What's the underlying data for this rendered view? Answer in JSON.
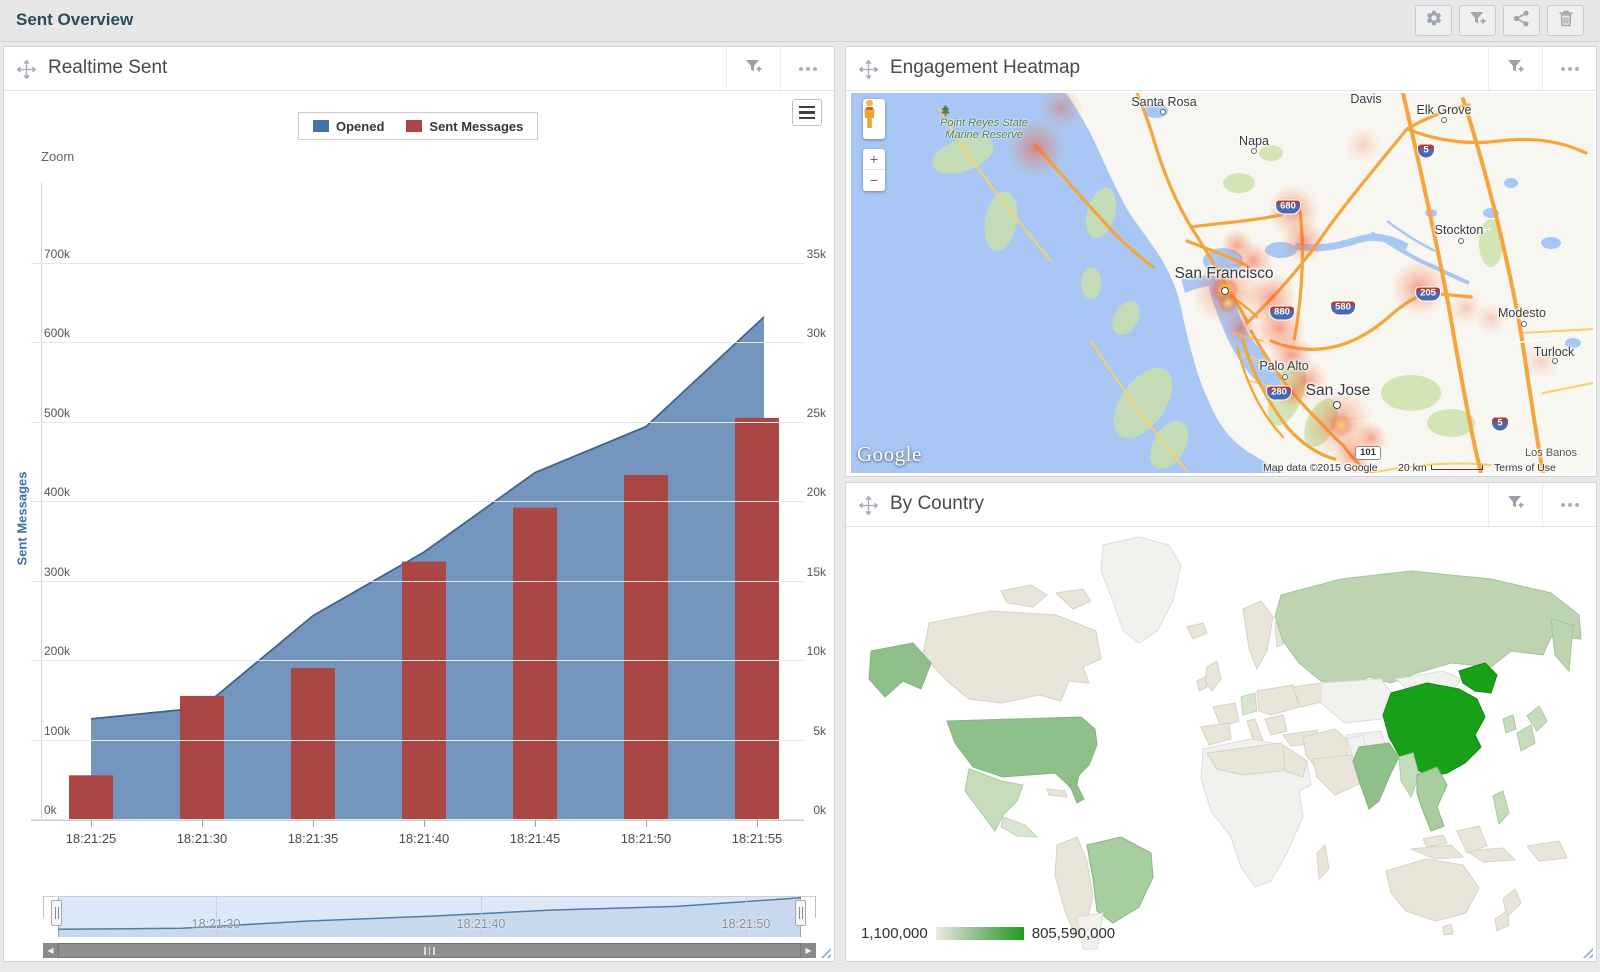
{
  "app": {
    "title": "Sent Overview"
  },
  "toolbar": {
    "buttons": [
      {
        "name": "settings",
        "icon": "gear-icon"
      },
      {
        "name": "add-filter",
        "icon": "filter-plus-icon"
      },
      {
        "name": "share",
        "icon": "share-icon"
      },
      {
        "name": "delete",
        "icon": "trash-icon"
      }
    ]
  },
  "colors": {
    "opened_blue": "#4572A7",
    "sent_red": "#AA4643",
    "title_navy": "#2C4A5E",
    "china_green": "#18A018",
    "high_green": "#8FC08A",
    "mid_green": "#A8CD9E",
    "russia_green": "#BCD5B0",
    "light_green": "#C6DDBC",
    "pale_green": "#D9E6CF",
    "no_data_beige": "#E9E5D8",
    "no_data_gray": "#F1F1EE",
    "heat_water": "#A9C7F5",
    "legend_gradient_start": "#EDEADF",
    "legend_gradient_end": "#1E9C1E"
  },
  "panels": {
    "realtime_sent": {
      "title": "Realtime Sent",
      "zoom_label": "Zoom",
      "legend": [
        {
          "label": "Opened",
          "color": "#4572A7"
        },
        {
          "label": "Sent Messages",
          "color": "#AA4643"
        }
      ],
      "y_axis_left": {
        "title": "Sent Messages",
        "labels": [
          "700k",
          "600k",
          "500k",
          "400k",
          "300k",
          "200k",
          "100k",
          "0k"
        ]
      },
      "y_axis_right": {
        "labels": [
          "35k",
          "30k",
          "25k",
          "20k",
          "15k",
          "10k",
          "5k",
          "0k"
        ]
      },
      "x_axis": {
        "labels": [
          "18:21:25",
          "18:21:30",
          "18:21:35",
          "18:21:40",
          "18:21:45",
          "18:21:50",
          "18:21:55"
        ]
      },
      "navigator": {
        "labels": [
          "18:21:30",
          "18:21:40",
          "18:21:50"
        ]
      },
      "chart_data": {
        "type": "combo",
        "x": [
          "18:21:25",
          "18:21:30",
          "18:21:35",
          "18:21:40",
          "18:21:45",
          "18:21:50",
          "18:21:55"
        ],
        "series": [
          {
            "name": "Opened",
            "type": "area",
            "y_axis": "right",
            "color": "#4572A7",
            "values": [
              6300,
              7000,
              12800,
              16800,
              21800,
              24700,
              31600
            ]
          },
          {
            "name": "Sent Messages",
            "type": "bar",
            "y_axis": "left",
            "color": "#AA4643",
            "values": [
              55000,
              155000,
              190000,
              324000,
              392000,
              433000,
              505000
            ]
          }
        ],
        "ylim_left": [
          0,
          700000
        ],
        "ylim_right": [
          0,
          35000
        ],
        "ylabel_left": "Sent Messages"
      }
    },
    "engagement_heatmap": {
      "title": "Engagement Heatmap",
      "map": {
        "labels": {
          "santa_rosa": "Santa Rosa",
          "napa": "Napa",
          "davis": "Davis",
          "elk_grove": "Elk Grove",
          "stockton": "Stockton",
          "modesto": "Modesto",
          "turlock": "Turlock",
          "san_francisco": "San Francisco",
          "palo_alto": "Palo Alto",
          "san_jose": "San Jose",
          "los_banos": "Los Banos",
          "point_reyes_line1": "Point Reyes State",
          "point_reyes_line2": "Marine Reserve"
        },
        "shields": {
          "i680": "680",
          "i880": "880",
          "i580": "580",
          "i205": "205",
          "i280": "280",
          "i5": "5",
          "us101": "101"
        },
        "controls": {
          "zoom_in": "+",
          "zoom_out": "−"
        },
        "logo": "Google",
        "attribution": "Map data ©2015 Google",
        "scale_label": "20 km",
        "terms": "Terms of Use"
      }
    },
    "by_country": {
      "title": "By Country",
      "legend": {
        "min_label": "1,100,000",
        "max_label": "805,590,000"
      },
      "chart_data": {
        "type": "choropleth",
        "metric_range": [
          1100000,
          805590000
        ],
        "shading": {
          "highest": [
            "China"
          ],
          "high": [
            "United States",
            "Alaska (US)",
            "India"
          ],
          "medium": [
            "Brazil",
            "Russia",
            "Mexico"
          ],
          "light": [
            "Japan",
            "Germany",
            "Vietnam",
            "Thailand",
            "Philippines",
            "Myanmar",
            "South Korea",
            "Central America"
          ],
          "minimal_or_none": [
            "Canada",
            "Greenland",
            "Australia",
            "Argentina",
            "most of Africa",
            "Middle East",
            "Scandinavia",
            "United Kingdom",
            "France",
            "Spain",
            "Indonesia",
            "Mongolia",
            "Central Asia"
          ]
        }
      }
    }
  }
}
